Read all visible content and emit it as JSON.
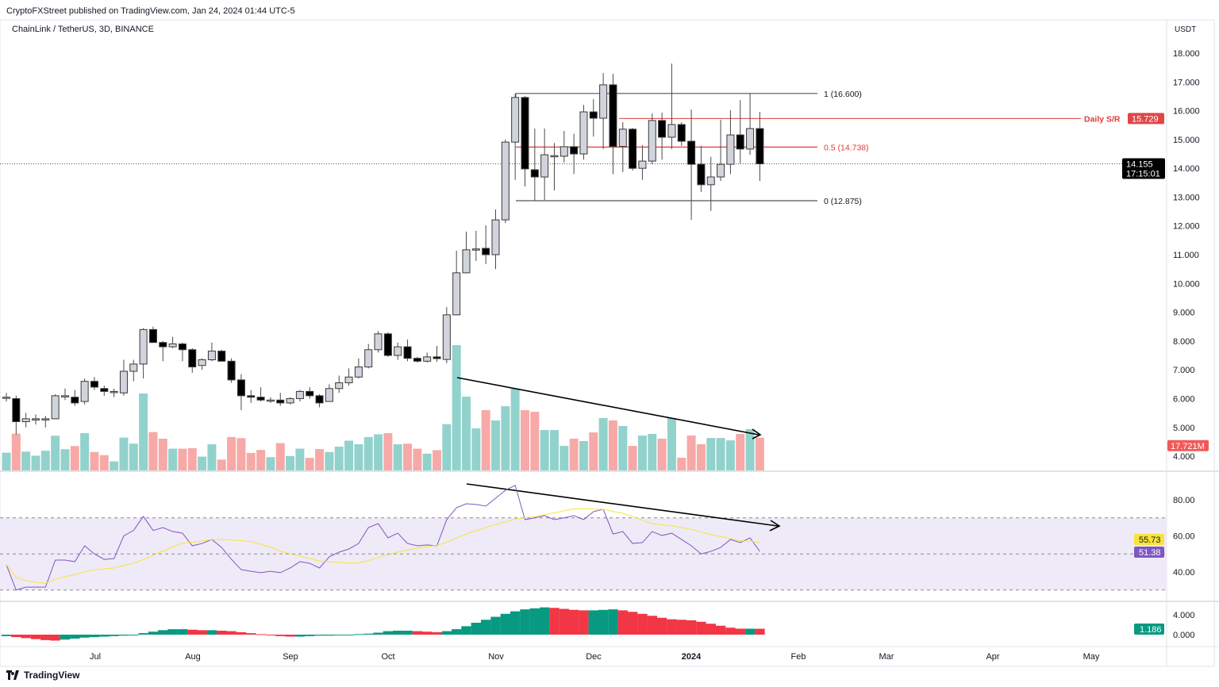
{
  "header": {
    "published": "CryptoFXStreet published on TradingView.com, Jan 24, 2024 01:44 UTC-5",
    "symbol": "ChainLink / TetherUS, 3D, BINANCE"
  },
  "footer": {
    "logo_text": "TradingView"
  },
  "colors": {
    "up_body": "#d1d4dc",
    "down_body": "#000000",
    "vol_up": "#92d2cc",
    "vol_down": "#f7a9a7",
    "sr_red": "#e03b3b",
    "rsi": "#7e57c2",
    "rsi_ma": "#f7e43a",
    "macd_up": "#089981",
    "macd_down": "#f23645",
    "rsi_band": "#efeaf7"
  },
  "chart_data": {
    "type": "candlestick",
    "currency_label": "USDT",
    "price_ticks": [
      "18.000",
      "17.000",
      "16.000",
      "15.000",
      "14.000",
      "13.000",
      "12.000",
      "11.000",
      "10.000",
      "9.000",
      "8.000",
      "7.000",
      "6.000",
      "5.000",
      "4.000"
    ],
    "price_range": [
      4,
      18
    ],
    "x_ticks": [
      {
        "label": "Jul",
        "bold": false
      },
      {
        "label": "Aug",
        "bold": false
      },
      {
        "label": "Sep",
        "bold": false
      },
      {
        "label": "Oct",
        "bold": false
      },
      {
        "label": "Nov",
        "bold": false
      },
      {
        "label": "Dec",
        "bold": false
      },
      {
        "label": "2024",
        "bold": true
      },
      {
        "label": "Feb",
        "bold": false
      },
      {
        "label": "Mar",
        "bold": false
      },
      {
        "label": "Apr",
        "bold": false
      },
      {
        "label": "May",
        "bold": false
      }
    ],
    "candles_ohlc": [
      [
        6.05,
        6.2,
        5.9,
        6.05
      ],
      [
        6.0,
        6.1,
        4.75,
        5.2
      ],
      [
        5.2,
        5.5,
        5.0,
        5.3
      ],
      [
        5.3,
        5.45,
        5.1,
        5.3
      ],
      [
        5.3,
        5.4,
        5.0,
        5.3
      ],
      [
        5.3,
        6.15,
        5.3,
        6.1
      ],
      [
        6.1,
        6.35,
        5.95,
        6.1
      ],
      [
        6.05,
        6.3,
        5.75,
        5.85
      ],
      [
        5.9,
        6.7,
        5.8,
        6.6
      ],
      [
        6.6,
        6.75,
        6.3,
        6.4
      ],
      [
        6.35,
        6.45,
        6.1,
        6.25
      ],
      [
        6.25,
        6.35,
        6.05,
        6.25
      ],
      [
        6.2,
        7.35,
        6.1,
        6.95
      ],
      [
        6.95,
        7.35,
        6.6,
        7.2
      ],
      [
        7.2,
        8.45,
        6.7,
        8.4
      ],
      [
        8.4,
        8.5,
        7.95,
        7.95
      ],
      [
        7.95,
        8.0,
        7.3,
        7.8
      ],
      [
        7.8,
        8.15,
        7.75,
        7.9
      ],
      [
        7.9,
        7.95,
        7.3,
        7.7
      ],
      [
        7.7,
        7.75,
        6.9,
        7.1
      ],
      [
        7.15,
        7.4,
        7.0,
        7.35
      ],
      [
        7.35,
        7.95,
        7.3,
        7.65
      ],
      [
        7.65,
        7.7,
        7.3,
        7.3
      ],
      [
        7.3,
        7.4,
        6.55,
        6.65
      ],
      [
        6.65,
        6.85,
        5.6,
        6.1
      ],
      [
        6.1,
        6.3,
        5.85,
        6.05
      ],
      [
        6.05,
        6.4,
        5.9,
        5.95
      ],
      [
        5.95,
        6.05,
        5.85,
        5.95
      ],
      [
        5.95,
        6.2,
        5.75,
        5.85
      ],
      [
        5.85,
        6.05,
        5.8,
        6.0
      ],
      [
        6.0,
        6.3,
        5.9,
        6.25
      ],
      [
        6.25,
        6.4,
        6.0,
        6.1
      ],
      [
        6.1,
        6.15,
        5.7,
        5.85
      ],
      [
        5.9,
        6.5,
        5.9,
        6.35
      ],
      [
        6.35,
        6.8,
        6.2,
        6.55
      ],
      [
        6.55,
        7.05,
        6.45,
        6.75
      ],
      [
        6.75,
        7.4,
        6.7,
        7.1
      ],
      [
        7.1,
        7.9,
        7.05,
        7.7
      ],
      [
        7.7,
        8.35,
        7.6,
        8.25
      ],
      [
        8.25,
        8.3,
        7.45,
        7.5
      ],
      [
        7.5,
        7.95,
        7.35,
        7.8
      ],
      [
        7.8,
        8.05,
        7.3,
        7.4
      ],
      [
        7.4,
        7.45,
        7.25,
        7.3
      ],
      [
        7.3,
        7.6,
        7.25,
        7.45
      ],
      [
        7.45,
        7.83,
        7.28,
        7.39
      ],
      [
        7.36,
        9.18,
        7.23,
        8.91
      ],
      [
        8.91,
        11.14,
        8.9,
        10.37
      ],
      [
        10.37,
        11.8,
        10.35,
        11.17
      ],
      [
        11.17,
        11.83,
        10.78,
        11.2
      ],
      [
        11.22,
        12.02,
        10.67,
        11.0
      ],
      [
        11.0,
        12.57,
        10.5,
        12.21
      ],
      [
        12.21,
        15.0,
        12.1,
        14.91
      ],
      [
        14.91,
        16.6,
        13.6,
        16.46
      ],
      [
        16.46,
        16.51,
        13.37,
        13.98
      ],
      [
        13.95,
        15.38,
        12.87,
        13.7
      ],
      [
        13.7,
        15.38,
        12.9,
        14.47
      ],
      [
        14.44,
        14.88,
        13.23,
        14.44
      ],
      [
        14.42,
        15.3,
        14.2,
        14.75
      ],
      [
        14.75,
        15.2,
        13.8,
        14.5
      ],
      [
        14.5,
        16.2,
        14.3,
        15.96
      ],
      [
        15.96,
        16.4,
        15.1,
        15.74
      ],
      [
        15.74,
        17.31,
        14.67,
        16.9
      ],
      [
        16.9,
        17.28,
        13.8,
        14.76
      ],
      [
        14.76,
        15.6,
        13.87,
        15.36
      ],
      [
        15.36,
        15.4,
        13.92,
        14.0
      ],
      [
        14.0,
        14.8,
        13.6,
        14.25
      ],
      [
        14.25,
        15.9,
        14.14,
        15.66
      ],
      [
        15.66,
        15.93,
        14.3,
        15.08
      ],
      [
        15.08,
        17.64,
        14.67,
        15.52
      ],
      [
        15.52,
        15.6,
        14.78,
        14.94
      ],
      [
        14.94,
        16.04,
        12.21,
        14.14
      ],
      [
        14.14,
        14.78,
        13.18,
        13.43
      ],
      [
        13.43,
        14.4,
        12.52,
        13.7
      ],
      [
        13.7,
        15.69,
        13.56,
        14.14
      ],
      [
        14.14,
        16.02,
        13.8,
        15.16
      ],
      [
        15.16,
        16.37,
        14.17,
        14.67
      ],
      [
        14.67,
        16.6,
        14.47,
        15.38
      ],
      [
        15.38,
        15.96,
        13.56,
        14.155
      ]
    ],
    "volume_millions": [
      9.6,
      19.9,
      10.2,
      8.0,
      10.7,
      18.8,
      11.5,
      13.2,
      20.2,
      10.0,
      8.3,
      4.9,
      17.8,
      14.5,
      41.7,
      20.8,
      17.2,
      11.8,
      11.8,
      12.1,
      7.5,
      14.2,
      5.9,
      18.1,
      17.5,
      9.5,
      11.1,
      7.2,
      14.8,
      7.8,
      11.8,
      6.8,
      11.6,
      10.0,
      12.9,
      16.1,
      14.2,
      18.1,
      19.6,
      20.2,
      14.2,
      14.5,
      11.8,
      9.1,
      11.0,
      25.1,
      67.9,
      40.0,
      22.8,
      32.7,
      27.1,
      34.8,
      44.3,
      32.7,
      31.8,
      21.9,
      21.9,
      13.3,
      17.2,
      15.9,
      20.6,
      28.4,
      27.1,
      24.1,
      13.3,
      18.9,
      19.8,
      17.2,
      28.4,
      6.9,
      18.9,
      14.2,
      17.6,
      17.6,
      16.3,
      19.8,
      22.4,
      17.721
    ],
    "rsi": [
      44,
      30,
      31.6,
      31.6,
      31.6,
      46.6,
      46.6,
      45.7,
      54.5,
      50,
      47,
      47.4,
      60,
      63,
      70.8,
      63,
      64.6,
      62.4,
      61.5,
      54.5,
      55.8,
      58,
      53.6,
      47,
      41.3,
      40.4,
      39.6,
      40.4,
      39.6,
      42.2,
      45.7,
      44.8,
      42.2,
      48.4,
      51,
      52.7,
      55.8,
      64.6,
      66.8,
      58.9,
      61.5,
      55.8,
      54.5,
      55,
      54.5,
      69,
      75.6,
      77.8,
      77.4,
      76.5,
      80.9,
      85.3,
      88,
      69,
      70,
      71.2,
      69,
      70,
      71.2,
      69,
      73.4,
      74.7,
      61,
      62.4,
      55.8,
      56.3,
      62.4,
      60.2,
      61.5,
      58,
      54.5,
      50,
      51.4,
      53.6,
      58,
      56.3,
      58.9,
      51.38
    ],
    "rsi_ticks": [
      "80.00",
      "60.00",
      "40.00"
    ],
    "rsi_levels": [
      70,
      50,
      30
    ],
    "macd_hist": [
      -0.3,
      -0.5,
      -0.7,
      -0.9,
      -1.1,
      -1.2,
      -1.0,
      -0.8,
      -0.6,
      -0.5,
      -0.4,
      -0.3,
      -0.2,
      -0.1,
      0.3,
      0.6,
      0.9,
      1.1,
      1.1,
      1.0,
      0.9,
      0.9,
      0.8,
      0.7,
      0.5,
      0.3,
      0.1,
      -0.1,
      -0.3,
      -0.4,
      -0.4,
      -0.3,
      -0.2,
      -0.2,
      -0.1,
      0.0,
      0.1,
      0.2,
      0.4,
      0.7,
      0.8,
      0.8,
      0.7,
      0.6,
      0.5,
      0.7,
      1.1,
      1.7,
      2.4,
      3.0,
      3.6,
      4.2,
      4.7,
      5.1,
      5.3,
      5.5,
      5.4,
      5.2,
      5.0,
      4.9,
      4.9,
      5.0,
      5.1,
      4.9,
      4.6,
      4.2,
      3.8,
      3.4,
      3.1,
      3.0,
      2.9,
      2.6,
      2.2,
      1.8,
      1.4,
      1.2,
      1.2,
      1.186
    ],
    "macd_ticks": [
      "4.000",
      "0.000"
    ],
    "fib_levels": [
      {
        "label": "1 (16.600)",
        "value": 16.6,
        "color": "#131722"
      },
      {
        "label": "0.5 (14.738)",
        "value": 14.738,
        "color": "#e03b3b"
      },
      {
        "label": "0 (12.875)",
        "value": 12.875,
        "color": "#131722"
      }
    ],
    "support_resistance": {
      "label": "Daily S/R",
      "value": 15.729,
      "value_label": "15.729"
    },
    "last_price": {
      "value": 14.155,
      "value_label": "14.155",
      "countdown": "17:15:01"
    },
    "volume_label": "17.721M",
    "rsi_label": "51.38",
    "rsi_ma_label": "55.73",
    "macd_label": "1.186"
  }
}
